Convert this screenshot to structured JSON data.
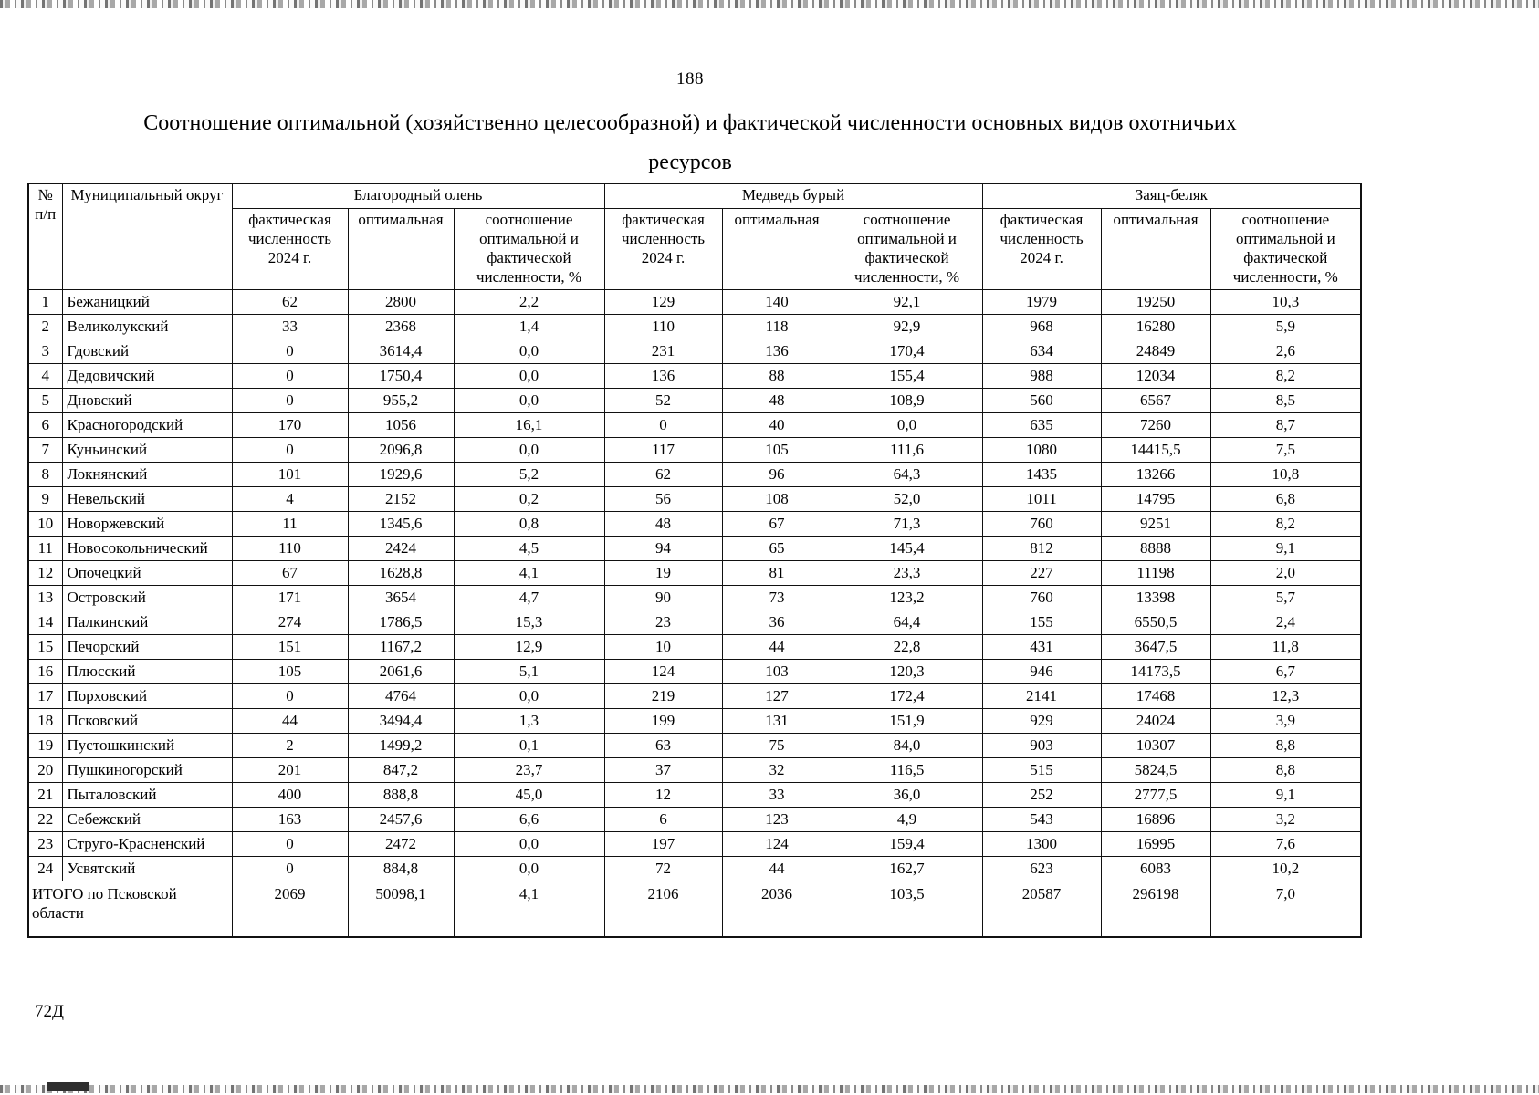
{
  "page": {
    "number": "188",
    "title_line1": "Соотношение оптимальной (хозяйственно целесообразной) и фактической численности основных видов охотничьих",
    "title_line2": "ресурсов",
    "footer_code": "72Д"
  },
  "table": {
    "header": {
      "num_line1": "№",
      "num_line2": "п/п",
      "municipality": "Муниципальный округ",
      "groups": [
        "Благородный олень",
        "Медведь бурый",
        "Заяц-беляк"
      ],
      "subcols": [
        "фактическая численность 2024 г.",
        "оптимальная",
        "соотношение оптимальной и фактической численности, %"
      ]
    },
    "rows": [
      [
        "1",
        "Бежаницкий",
        "62",
        "2800",
        "2,2",
        "129",
        "140",
        "92,1",
        "1979",
        "19250",
        "10,3"
      ],
      [
        "2",
        "Великолукский",
        "33",
        "2368",
        "1,4",
        "110",
        "118",
        "92,9",
        "968",
        "16280",
        "5,9"
      ],
      [
        "3",
        "Гдовский",
        "0",
        "3614,4",
        "0,0",
        "231",
        "136",
        "170,4",
        "634",
        "24849",
        "2,6"
      ],
      [
        "4",
        "Дедовичский",
        "0",
        "1750,4",
        "0,0",
        "136",
        "88",
        "155,4",
        "988",
        "12034",
        "8,2"
      ],
      [
        "5",
        "Дновский",
        "0",
        "955,2",
        "0,0",
        "52",
        "48",
        "108,9",
        "560",
        "6567",
        "8,5"
      ],
      [
        "6",
        "Красногородский",
        "170",
        "1056",
        "16,1",
        "0",
        "40",
        "0,0",
        "635",
        "7260",
        "8,7"
      ],
      [
        "7",
        "Куньинский",
        "0",
        "2096,8",
        "0,0",
        "117",
        "105",
        "111,6",
        "1080",
        "14415,5",
        "7,5"
      ],
      [
        "8",
        "Локнянский",
        "101",
        "1929,6",
        "5,2",
        "62",
        "96",
        "64,3",
        "1435",
        "13266",
        "10,8"
      ],
      [
        "9",
        "Невельский",
        "4",
        "2152",
        "0,2",
        "56",
        "108",
        "52,0",
        "1011",
        "14795",
        "6,8"
      ],
      [
        "10",
        "Новоржевский",
        "11",
        "1345,6",
        "0,8",
        "48",
        "67",
        "71,3",
        "760",
        "9251",
        "8,2"
      ],
      [
        "11",
        "Новосокольнический",
        "110",
        "2424",
        "4,5",
        "94",
        "65",
        "145,4",
        "812",
        "8888",
        "9,1"
      ],
      [
        "12",
        "Опочецкий",
        "67",
        "1628,8",
        "4,1",
        "19",
        "81",
        "23,3",
        "227",
        "11198",
        "2,0"
      ],
      [
        "13",
        "Островский",
        "171",
        "3654",
        "4,7",
        "90",
        "73",
        "123,2",
        "760",
        "13398",
        "5,7"
      ],
      [
        "14",
        "Палкинский",
        "274",
        "1786,5",
        "15,3",
        "23",
        "36",
        "64,4",
        "155",
        "6550,5",
        "2,4"
      ],
      [
        "15",
        "Печорский",
        "151",
        "1167,2",
        "12,9",
        "10",
        "44",
        "22,8",
        "431",
        "3647,5",
        "11,8"
      ],
      [
        "16",
        "Плюсский",
        "105",
        "2061,6",
        "5,1",
        "124",
        "103",
        "120,3",
        "946",
        "14173,5",
        "6,7"
      ],
      [
        "17",
        "Порховский",
        "0",
        "4764",
        "0,0",
        "219",
        "127",
        "172,4",
        "2141",
        "17468",
        "12,3"
      ],
      [
        "18",
        "Псковский",
        "44",
        "3494,4",
        "1,3",
        "199",
        "131",
        "151,9",
        "929",
        "24024",
        "3,9"
      ],
      [
        "19",
        "Пустошкинский",
        "2",
        "1499,2",
        "0,1",
        "63",
        "75",
        "84,0",
        "903",
        "10307",
        "8,8"
      ],
      [
        "20",
        "Пушкиногорский",
        "201",
        "847,2",
        "23,7",
        "37",
        "32",
        "116,5",
        "515",
        "5824,5",
        "8,8"
      ],
      [
        "21",
        "Пыталовский",
        "400",
        "888,8",
        "45,0",
        "12",
        "33",
        "36,0",
        "252",
        "2777,5",
        "9,1"
      ],
      [
        "22",
        "Себежский",
        "163",
        "2457,6",
        "6,6",
        "6",
        "123",
        "4,9",
        "543",
        "16896",
        "3,2"
      ],
      [
        "23",
        "Струго-Красненский",
        "0",
        "2472",
        "0,0",
        "197",
        "124",
        "159,4",
        "1300",
        "16995",
        "7,6"
      ],
      [
        "24",
        "Усвятский",
        "0",
        "884,8",
        "0,0",
        "72",
        "44",
        "162,7",
        "623",
        "6083",
        "10,2"
      ]
    ],
    "total": {
      "label": "ИТОГО по Псковской области",
      "values": [
        "2069",
        "50098,1",
        "4,1",
        "2106",
        "2036",
        "103,5",
        "20587",
        "296198",
        "7,0"
      ]
    }
  }
}
